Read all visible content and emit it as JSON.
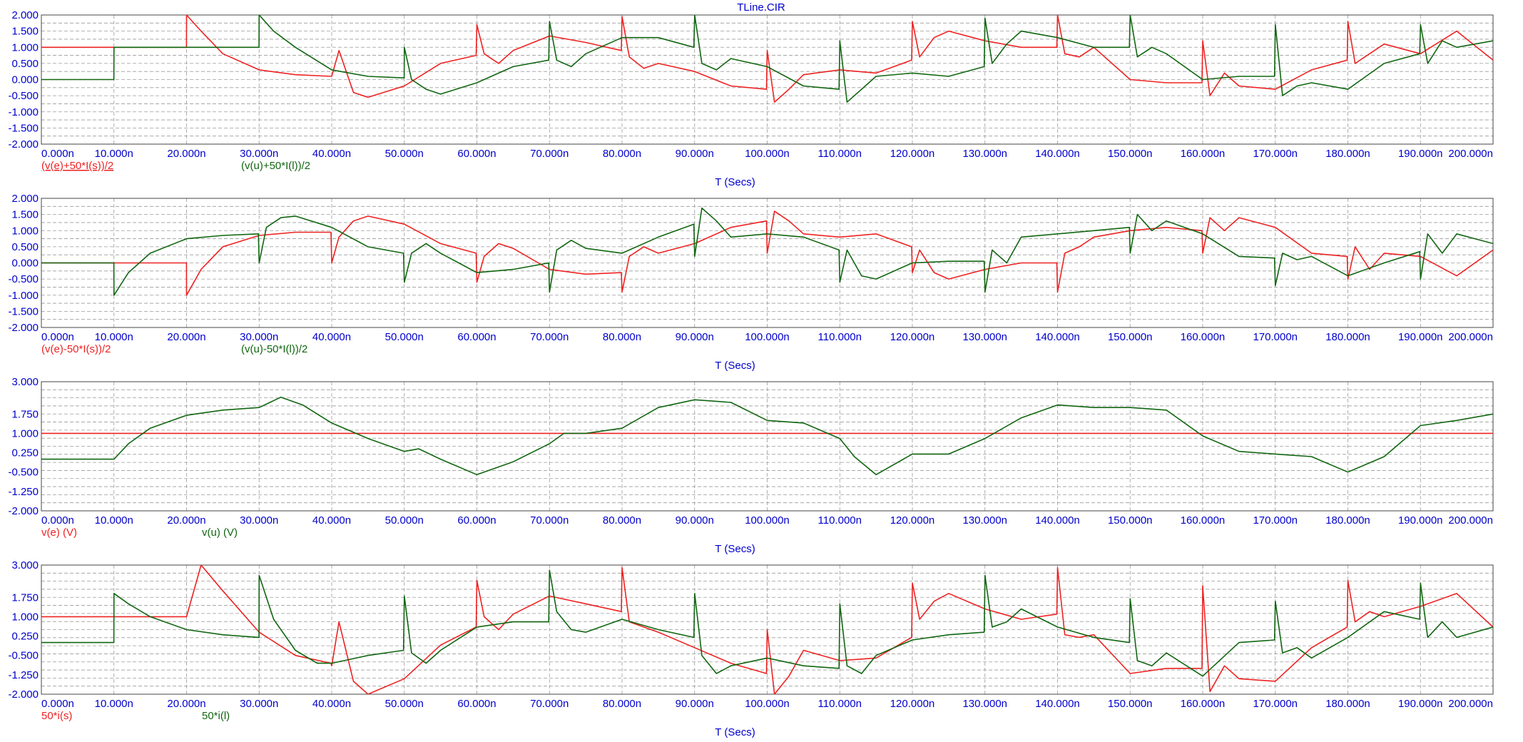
{
  "window": {
    "title": "TLine.CIR"
  },
  "colors": {
    "red": "#ee2222",
    "green": "#116611",
    "axis": "#0000cc",
    "grid": "#9a9a9a"
  },
  "chart_data": [
    {
      "type": "line",
      "title": "TLine.CIR",
      "xlabel": "T (Secs)",
      "xlim": [
        0,
        200
      ],
      "x_ticks": [
        "0.000n",
        "10.000n",
        "20.000n",
        "30.000n",
        "40.000n",
        "50.000n",
        "60.000n",
        "70.000n",
        "80.000n",
        "90.000n",
        "100.000n",
        "110.000n",
        "120.000n",
        "130.000n",
        "140.000n",
        "150.000n",
        "160.000n",
        "170.000n",
        "180.000n",
        "190.000n",
        "200.000n"
      ],
      "ylim": [
        -2,
        2
      ],
      "y_ticks": [
        "2.000",
        "1.500",
        "1.000",
        "0.500",
        "0.000",
        "-0.500",
        "-1.000",
        "-1.500",
        "-2.000"
      ],
      "grid": true,
      "series": [
        {
          "name": "(v(e)+50*I(s))/2",
          "color": "red",
          "underline": true,
          "x": [
            0,
            10,
            19.99,
            20,
            22,
            25,
            30,
            35,
            40,
            41,
            43,
            45,
            50,
            55,
            59.9,
            60,
            61,
            63,
            65,
            70,
            75,
            79.9,
            80,
            81,
            83,
            85,
            90,
            95,
            99.9,
            100,
            101,
            103,
            105,
            110,
            115,
            119.9,
            120,
            121,
            123,
            125,
            130,
            135,
            139.9,
            140,
            141,
            143,
            145,
            150,
            155,
            159.9,
            160,
            161,
            163,
            165,
            170,
            175,
            179.9,
            180,
            181,
            183,
            185,
            190,
            195,
            200
          ],
          "y": [
            1,
            1,
            1,
            2,
            1.5,
            0.8,
            0.3,
            0.15,
            0.1,
            0.9,
            -0.4,
            -0.55,
            -0.2,
            0.5,
            0.75,
            1.7,
            0.8,
            0.5,
            0.9,
            1.35,
            1.15,
            0.9,
            1.95,
            0.7,
            0.35,
            0.5,
            0.25,
            -0.2,
            -0.3,
            0.9,
            -0.7,
            -0.3,
            0.15,
            0.3,
            0.2,
            0.6,
            1.8,
            0.7,
            1.3,
            1.5,
            1.2,
            1,
            1,
            2,
            0.8,
            0.7,
            1,
            0,
            -0.1,
            -0.1,
            1.2,
            -0.5,
            0.2,
            -0.2,
            -0.3,
            0.3,
            0.6,
            1.8,
            0.5,
            0.8,
            1.1,
            0.8,
            1.5,
            0.6
          ]
        },
        {
          "name": "(v(u)+50*I(l))/2",
          "color": "green",
          "x": [
            0,
            9.99,
            10,
            20,
            29.99,
            30,
            32,
            35,
            40,
            45,
            49.99,
            50,
            51,
            53,
            55,
            60,
            65,
            69.9,
            70,
            71,
            73,
            75,
            80,
            85,
            89.9,
            90,
            91,
            93,
            95,
            100,
            105,
            109.9,
            110,
            111,
            113,
            115,
            120,
            125,
            129.9,
            130,
            131,
            133,
            135,
            140,
            145,
            149.9,
            150,
            151,
            153,
            155,
            160,
            165,
            169.9,
            170,
            171,
            173,
            175,
            180,
            185,
            189.9,
            190,
            191,
            193,
            195,
            200
          ],
          "y": [
            0,
            0,
            1,
            1,
            1,
            2,
            1.5,
            1,
            0.3,
            0.1,
            0.05,
            1,
            0,
            -0.3,
            -0.45,
            -0.1,
            0.4,
            0.6,
            1.8,
            0.6,
            0.4,
            0.8,
            1.3,
            1.3,
            1,
            2,
            0.5,
            0.3,
            0.65,
            0.4,
            -0.2,
            -0.3,
            1.2,
            -0.7,
            -0.3,
            0.1,
            0.2,
            0.1,
            0.4,
            1.9,
            0.5,
            1.1,
            1.5,
            1.3,
            1,
            1,
            2,
            0.7,
            1,
            0.8,
            0,
            0.1,
            0.1,
            1.7,
            -0.5,
            -0.2,
            -0.1,
            -0.3,
            0.5,
            0.8,
            1.7,
            0.5,
            1.2,
            1,
            1.2
          ]
        }
      ],
      "legend_placement": "bottom-left"
    },
    {
      "type": "line",
      "xlabel": "T (Secs)",
      "xlim": [
        0,
        200
      ],
      "x_ticks": [
        "0.000n",
        "10.000n",
        "20.000n",
        "30.000n",
        "40.000n",
        "50.000n",
        "60.000n",
        "70.000n",
        "80.000n",
        "90.000n",
        "100.000n",
        "110.000n",
        "120.000n",
        "130.000n",
        "140.000n",
        "150.000n",
        "160.000n",
        "170.000n",
        "180.000n",
        "190.000n",
        "200.000n"
      ],
      "ylim": [
        -2,
        2
      ],
      "y_ticks": [
        "2.000",
        "1.500",
        "1.000",
        "0.500",
        "0.000",
        "-0.500",
        "-1.000",
        "-1.500",
        "-2.000"
      ],
      "grid": true,
      "series": [
        {
          "name": "(v(e)-50*I(s))/2",
          "color": "red",
          "x": [
            0,
            19.99,
            20,
            22,
            25,
            30,
            35,
            39.9,
            40,
            41,
            43,
            45,
            50,
            55,
            59.9,
            60,
            61,
            63,
            65,
            70,
            75,
            79.9,
            80,
            81,
            83,
            85,
            90,
            95,
            99.9,
            100,
            101,
            103,
            105,
            110,
            115,
            119.9,
            120,
            121,
            123,
            125,
            130,
            135,
            139.9,
            140,
            141,
            143,
            145,
            150,
            155,
            159.9,
            160,
            161,
            163,
            165,
            170,
            175,
            179.9,
            180,
            181,
            183,
            185,
            190,
            195,
            200
          ],
          "y": [
            0,
            0,
            -1,
            -0.2,
            0.5,
            0.85,
            0.95,
            0.95,
            0,
            0.8,
            1.3,
            1.45,
            1.2,
            0.6,
            0.3,
            -0.6,
            0.2,
            0.6,
            0.45,
            -0.2,
            -0.35,
            -0.3,
            -0.9,
            0.2,
            0.5,
            0.3,
            0.6,
            1.1,
            1.3,
            0.3,
            1.6,
            1.3,
            0.9,
            0.8,
            0.9,
            0.5,
            -0.3,
            0.4,
            -0.3,
            -0.5,
            -0.2,
            0,
            0,
            -0.9,
            0.3,
            0.5,
            0.8,
            1,
            1.1,
            1,
            0.3,
            1.4,
            1,
            1.4,
            1.1,
            0.3,
            0.2,
            -0.5,
            0.5,
            -0.2,
            0.3,
            0.2,
            -0.4,
            0.4
          ]
        },
        {
          "name": "(v(u)-50*I(l))/2",
          "color": "green",
          "x": [
            0,
            9.99,
            10,
            12,
            15,
            20,
            25,
            29.9,
            30,
            31,
            33,
            35,
            40,
            45,
            49.9,
            50,
            51,
            53,
            55,
            60,
            65,
            69.9,
            70,
            71,
            73,
            75,
            80,
            85,
            89.9,
            90,
            91,
            93,
            95,
            100,
            105,
            109.9,
            110,
            111,
            113,
            115,
            120,
            125,
            129.9,
            130,
            131,
            133,
            135,
            140,
            145,
            149.9,
            150,
            151,
            153,
            155,
            160,
            165,
            169.9,
            170,
            171,
            173,
            175,
            180,
            185,
            189.9,
            190,
            191,
            193,
            195,
            200
          ],
          "y": [
            0,
            0,
            -1,
            -0.3,
            0.3,
            0.75,
            0.85,
            0.9,
            0,
            1.1,
            1.4,
            1.45,
            1.1,
            0.5,
            0.3,
            -0.6,
            0.3,
            0.6,
            0.3,
            -0.3,
            -0.2,
            0,
            -0.9,
            0.4,
            0.7,
            0.45,
            0.3,
            0.8,
            1.2,
            0.2,
            1.7,
            1.3,
            0.8,
            0.9,
            0.8,
            0.4,
            -0.6,
            0.4,
            -0.4,
            -0.5,
            0,
            0.05,
            0.05,
            -0.9,
            0.4,
            0,
            0.8,
            0.9,
            1,
            1.1,
            0.3,
            1.5,
            1,
            1.3,
            0.9,
            0.2,
            0.15,
            -0.7,
            0.3,
            0.1,
            0.2,
            -0.4,
            0,
            0.35,
            -0.5,
            0.9,
            0.3,
            0.9,
            0.6
          ]
        }
      ],
      "legend_placement": "bottom-left"
    },
    {
      "type": "line",
      "xlabel": "T (Secs)",
      "xlim": [
        0,
        200
      ],
      "x_ticks": [
        "0.000n",
        "10.000n",
        "20.000n",
        "30.000n",
        "40.000n",
        "50.000n",
        "60.000n",
        "70.000n",
        "80.000n",
        "90.000n",
        "100.000n",
        "110.000n",
        "120.000n",
        "130.000n",
        "140.000n",
        "150.000n",
        "160.000n",
        "170.000n",
        "180.000n",
        "190.000n",
        "200.000n"
      ],
      "ylim": [
        -2,
        3
      ],
      "y_ticks": [
        "3.000",
        "1.750",
        "1.000",
        "0.250",
        "-0.500",
        "-1.250",
        "-2.000"
      ],
      "y_tick_values": [
        3,
        1.75,
        1,
        0.25,
        -0.5,
        -1.25,
        -2
      ],
      "grid": true,
      "series": [
        {
          "name": "v(e) (V)",
          "color": "red",
          "x": [
            0,
            200
          ],
          "y": [
            1,
            1
          ]
        },
        {
          "name": "v(u) (V)",
          "color": "green",
          "x": [
            0,
            10,
            12,
            15,
            20,
            25,
            30,
            33,
            36,
            40,
            45,
            50,
            52,
            55,
            60,
            65,
            70,
            72,
            75,
            80,
            85,
            90,
            95,
            100,
            105,
            110,
            112,
            115,
            120,
            125,
            130,
            135,
            140,
            145,
            150,
            155,
            160,
            165,
            170,
            175,
            180,
            185,
            190,
            195,
            200
          ],
          "y": [
            0,
            0,
            0.6,
            1.2,
            1.7,
            1.9,
            2,
            2.4,
            2.1,
            1.4,
            0.8,
            0.3,
            0.4,
            0,
            -0.6,
            -0.1,
            0.6,
            1,
            1,
            1.2,
            2,
            2.3,
            2.2,
            1.5,
            1.4,
            0.8,
            0.1,
            -0.6,
            0.2,
            0.2,
            0.8,
            1.6,
            2.1,
            2,
            2,
            1.9,
            0.9,
            0.3,
            0.2,
            0.1,
            -0.5,
            0.1,
            1.3,
            1.5,
            1.75
          ]
        }
      ],
      "legend_placement": "bottom-left"
    },
    {
      "type": "line",
      "xlabel": "T (Secs)",
      "xlim": [
        0,
        200
      ],
      "x_ticks": [
        "0.000n",
        "10.000n",
        "20.000n",
        "30.000n",
        "40.000n",
        "50.000n",
        "60.000n",
        "70.000n",
        "80.000n",
        "90.000n",
        "100.000n",
        "110.000n",
        "120.000n",
        "130.000n",
        "140.000n",
        "150.000n",
        "160.000n",
        "170.000n",
        "180.000n",
        "190.000n",
        "200.000n"
      ],
      "ylim": [
        -2,
        3
      ],
      "y_ticks": [
        "3.000",
        "1.750",
        "1.000",
        "0.250",
        "-0.500",
        "-1.250",
        "-2.000"
      ],
      "y_tick_values": [
        3,
        1.75,
        1,
        0.25,
        -0.5,
        -1.25,
        -2
      ],
      "grid": true,
      "series": [
        {
          "name": "50*i(s)",
          "color": "red",
          "x": [
            0,
            19.99,
            20,
            22,
            25,
            30,
            35,
            39.9,
            40,
            41,
            43,
            45,
            50,
            55,
            59.9,
            60,
            61,
            63,
            65,
            70,
            75,
            79.9,
            80,
            81,
            83,
            85,
            90,
            95,
            99.9,
            100,
            101,
            103,
            105,
            110,
            115,
            119.9,
            120,
            121,
            123,
            125,
            130,
            135,
            139.9,
            140,
            141,
            143,
            145,
            150,
            155,
            159.9,
            160,
            161,
            163,
            165,
            170,
            175,
            179.9,
            180,
            181,
            183,
            185,
            190,
            195,
            200
          ],
          "y": [
            1,
            1,
            1,
            3,
            2,
            0.4,
            -0.5,
            -0.8,
            -0.9,
            0.8,
            -1.5,
            -2,
            -1.4,
            -0.1,
            0.6,
            2.4,
            1,
            0.5,
            1.1,
            1.8,
            1.5,
            1.2,
            2.9,
            0.8,
            0.6,
            0.4,
            -0.2,
            -0.8,
            -1.2,
            0.5,
            -2,
            -1.3,
            -0.3,
            -0.7,
            -0.6,
            0.2,
            2.3,
            0.9,
            1.6,
            1.9,
            1.3,
            0.9,
            1.1,
            2.9,
            0.3,
            0.2,
            0.3,
            -1.2,
            -1,
            -1,
            2.2,
            -1.9,
            -0.9,
            -1.4,
            -1.5,
            -0.2,
            0.6,
            2.4,
            0.8,
            1.2,
            1,
            1.4,
            1.9,
            0.6
          ]
        },
        {
          "name": "50*i(l)",
          "color": "green",
          "x": [
            0,
            9.99,
            10,
            12,
            15,
            20,
            25,
            29.99,
            30,
            32,
            35,
            38,
            40,
            45,
            49.9,
            50,
            51,
            53,
            55,
            60,
            65,
            69.9,
            70,
            71,
            73,
            75,
            80,
            85,
            89.9,
            90,
            91,
            93,
            95,
            100,
            105,
            109.9,
            110,
            111,
            113,
            115,
            120,
            125,
            129.9,
            130,
            131,
            133,
            135,
            140,
            145,
            149.9,
            150,
            151,
            153,
            155,
            160,
            165,
            169.9,
            170,
            171,
            173,
            175,
            180,
            185,
            189.9,
            190,
            191,
            193,
            195,
            200
          ],
          "y": [
            0,
            0,
            1.9,
            1.5,
            1,
            0.5,
            0.3,
            0.2,
            2.6,
            0.9,
            -0.3,
            -0.8,
            -0.8,
            -0.5,
            -0.3,
            1.8,
            -0.4,
            -0.8,
            -0.3,
            0.6,
            0.8,
            0.8,
            2.8,
            1.2,
            0.5,
            0.4,
            0.9,
            0.5,
            0.2,
            1.9,
            -0.5,
            -1.2,
            -0.9,
            -0.6,
            -0.9,
            -1,
            1.5,
            -0.9,
            -1.2,
            -0.5,
            0.1,
            0.3,
            0.4,
            2.6,
            0.6,
            0.8,
            1.3,
            0.6,
            0.2,
            0,
            1.7,
            -0.7,
            -0.9,
            -0.4,
            -1.3,
            0,
            0.1,
            1.6,
            -0.4,
            -0.2,
            -0.6,
            0.2,
            1.2,
            0.9,
            2.3,
            0.2,
            0.8,
            0.2,
            0.6
          ]
        }
      ],
      "legend_placement": "bottom-left"
    }
  ]
}
